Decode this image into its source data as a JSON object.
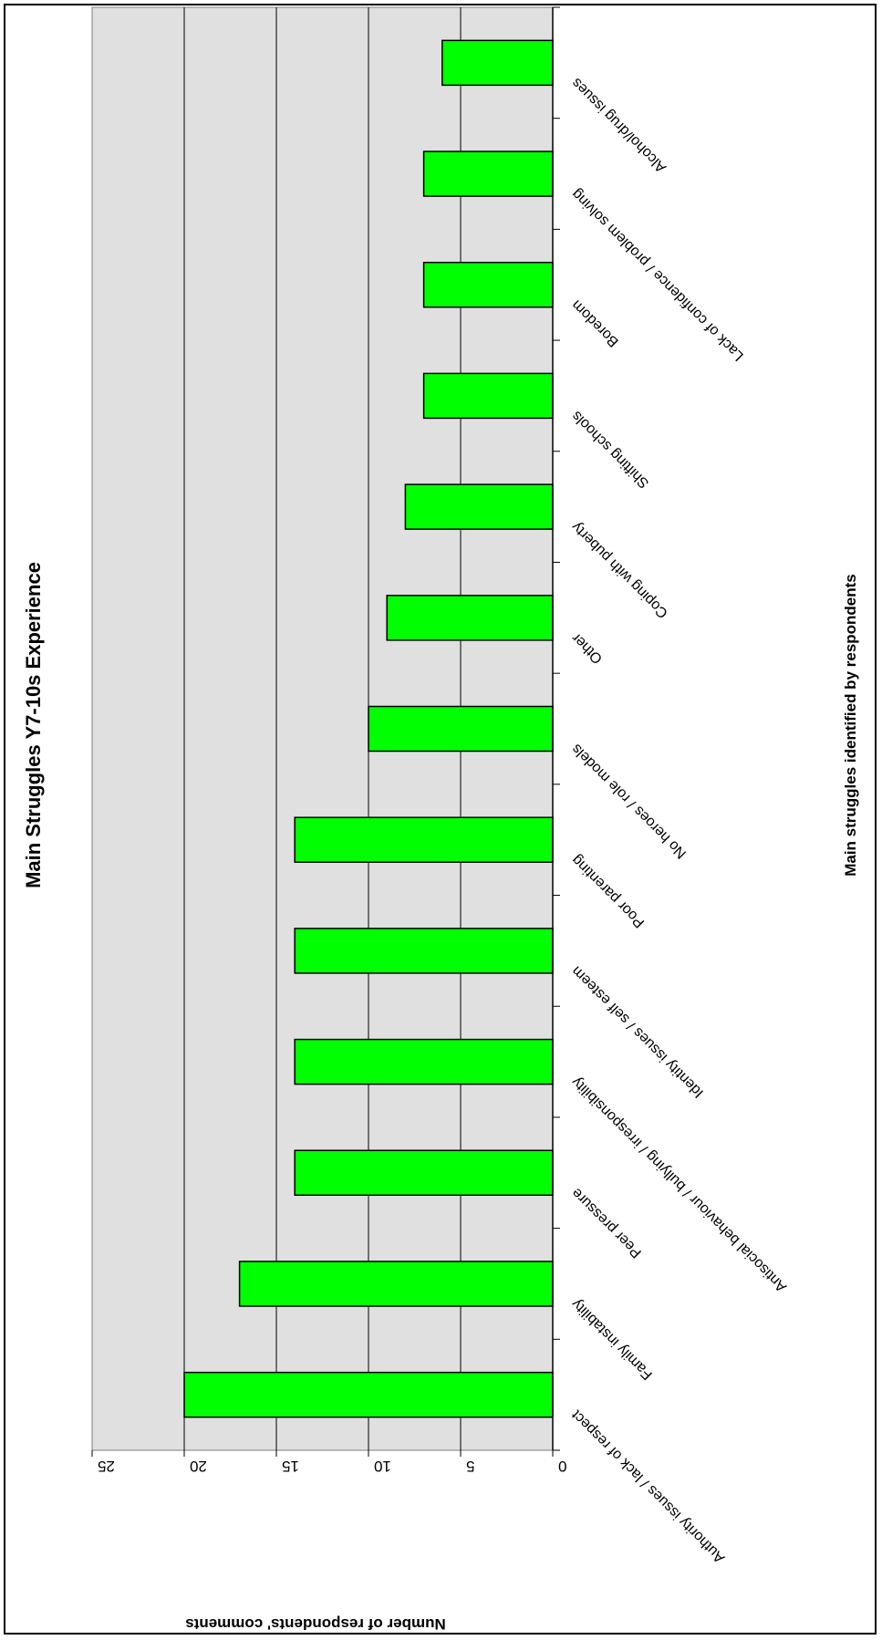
{
  "chart_data": {
    "type": "bar",
    "orientation": "rotated",
    "title": "Main Struggles Y7-10s Experience",
    "xlabel": "Main struggles identified by respondents",
    "ylabel": "Number of respondents' comments",
    "ylim": [
      0,
      25
    ],
    "yticks": [
      0,
      5,
      10,
      15,
      20,
      25
    ],
    "grid": true,
    "categories": [
      "Authority issues / lack of respect",
      "Family instability",
      "Peer pressure",
      "Antisocial behaviour / bullying / irresponsibility",
      "Identity issues / self esteem",
      "Poor parenting",
      "No heroes / role models",
      "Other",
      "Coping with puberty",
      "Shifting schools",
      "Boredom",
      "Lack of confidence / problem solving",
      "Alcohol/drug issues"
    ],
    "values": [
      20,
      17,
      14,
      14,
      14,
      14,
      10,
      9,
      8,
      7,
      7,
      7,
      6
    ],
    "colors": {
      "bar_fill": "#00ff00",
      "bar_stroke": "#000000",
      "plot_bg": "#e0e0e0",
      "gridline": "#000000"
    }
  }
}
